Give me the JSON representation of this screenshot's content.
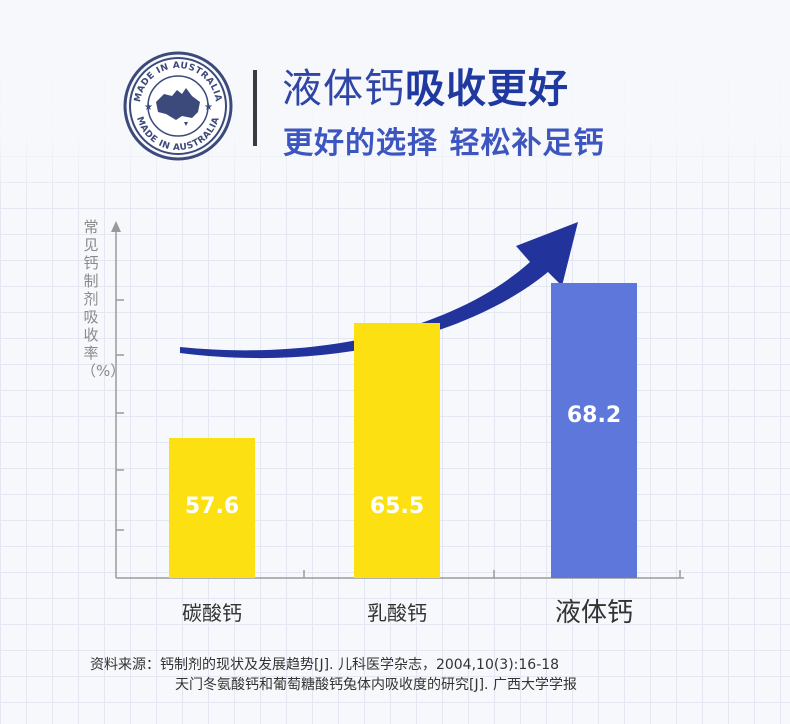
{
  "badge": {
    "top_text": "MADE IN AUSTRALIA",
    "bottom_text": "MADE IN AUSTRALIA"
  },
  "headline": {
    "part1": "液体钙",
    "part2": "吸收更好"
  },
  "subline": "更好的选择 轻松补足钙",
  "chart_data": {
    "type": "bar",
    "ylabel": "常见钙制剂吸收率（%）",
    "categories": [
      "碳酸钙",
      "乳酸钙",
      "液体钙"
    ],
    "values": [
      57.6,
      65.5,
      68.2
    ],
    "value_labels": [
      "57.6",
      "65.5",
      "68.2"
    ],
    "colors": [
      "#fde011",
      "#fde011",
      "#5d77db"
    ],
    "ylim": [
      48,
      72
    ],
    "trend_arrow": true,
    "grid": false
  },
  "source": {
    "line1": "资料来源：钙制剂的现状及发展趋势[J]. 儿科医学杂志，2004,10(3):16-18",
    "line2": "天门冬氨酸钙和葡萄糖酸钙兔体内吸收度的研究[J]. 广西大学学报"
  },
  "colors": {
    "accent": "#2f46a6",
    "arrow": "#22349c",
    "bar_yellow": "#fde011",
    "bar_blue": "#5d77db"
  }
}
